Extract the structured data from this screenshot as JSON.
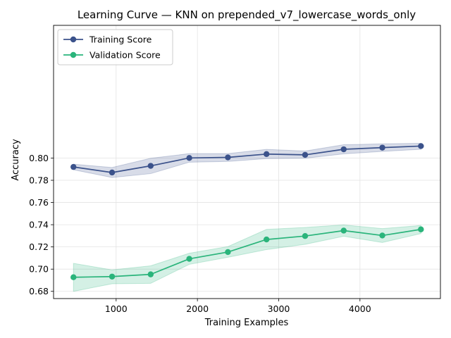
{
  "chart_data": {
    "type": "line",
    "title": "Learning Curve — KNN on prepended_v7_lowercase_words_only",
    "xlabel": "Training Examples",
    "ylabel": "Accuracy",
    "xlim": [
      230,
      4990
    ],
    "ylim": [
      0.6735,
      0.9195
    ],
    "x": [
      475,
      950,
      1425,
      1900,
      2375,
      2850,
      3325,
      3800,
      4275,
      4750
    ],
    "xticks": [
      1000,
      2000,
      3000,
      4000
    ],
    "xtick_labels": [
      "1000",
      "2000",
      "3000",
      "4000"
    ],
    "yticks": [
      0.68,
      0.7,
      0.72,
      0.74,
      0.76,
      0.78,
      0.8
    ],
    "ytick_labels": [
      "0.68",
      "0.70",
      "0.72",
      "0.74",
      "0.76",
      "0.78",
      "0.80"
    ],
    "grid": true,
    "legend_position": "top-left",
    "series": [
      {
        "name": "Training Score",
        "color": "#3b528b",
        "values": [
          0.792,
          0.787,
          0.793,
          0.8001,
          0.8006,
          0.8036,
          0.8029,
          0.8079,
          0.8094,
          0.8108
        ],
        "lower": [
          0.7895,
          0.7825,
          0.786,
          0.7963,
          0.797,
          0.7995,
          0.7998,
          0.8038,
          0.806,
          0.8079
        ],
        "upper": [
          0.7945,
          0.7915,
          0.7998,
          0.804,
          0.804,
          0.8078,
          0.8063,
          0.812,
          0.8128,
          0.8133
        ]
      },
      {
        "name": "Validation Score",
        "color": "#2ab47b",
        "values": [
          0.6927,
          0.6933,
          0.6953,
          0.7093,
          0.7154,
          0.7267,
          0.7298,
          0.7347,
          0.7303,
          0.7358
        ],
        "lower": [
          0.68,
          0.6868,
          0.6872,
          0.7043,
          0.7107,
          0.7176,
          0.7223,
          0.7296,
          0.724,
          0.732
        ],
        "upper": [
          0.7052,
          0.6993,
          0.703,
          0.7143,
          0.7203,
          0.7358,
          0.7375,
          0.7398,
          0.7365,
          0.7393
        ]
      }
    ]
  }
}
